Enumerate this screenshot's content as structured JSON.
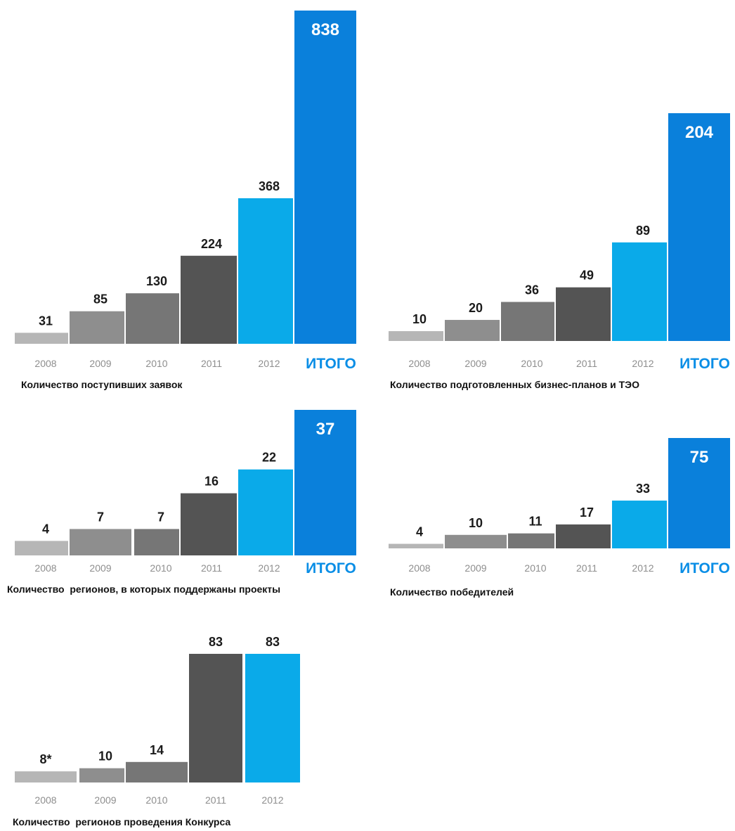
{
  "chart_data": [
    {
      "type": "bar",
      "title": "Количество поступивших заявок",
      "categories": [
        "2008",
        "2009",
        "2010",
        "2011",
        "2012",
        "ИТОГО"
      ],
      "values": [
        31,
        85,
        130,
        224,
        368,
        838
      ],
      "value_labels": [
        "31",
        "85",
        "130",
        "224",
        "368",
        "838"
      ],
      "ylim": [
        0,
        838
      ],
      "grid": false,
      "colors": [
        "#b6b6b6",
        "#8e8e8e",
        "#767676",
        "#545454",
        "#0aaae9",
        "#0a80db"
      ]
    },
    {
      "type": "bar",
      "title": "Количество подготовленных бизнес-планов и ТЭО",
      "categories": [
        "2008",
        "2009",
        "2010",
        "2011",
        "2012",
        "ИТОГО"
      ],
      "values": [
        10,
        20,
        36,
        49,
        89,
        204
      ],
      "value_labels": [
        "10",
        "20",
        "36",
        "49",
        "89",
        "204"
      ],
      "ylim": [
        0,
        204
      ],
      "grid": false,
      "colors": [
        "#b6b6b6",
        "#8e8e8e",
        "#767676",
        "#545454",
        "#0aaae9",
        "#0a80db"
      ]
    },
    {
      "type": "bar",
      "title": "Количество  регионов, в которых поддержаны проекты",
      "categories": [
        "2008",
        "2009",
        "2010",
        "2011",
        "2012",
        "ИТОГО"
      ],
      "values": [
        4,
        7,
        7,
        16,
        22,
        37
      ],
      "value_labels": [
        "4",
        "7",
        "7",
        "16",
        "22",
        "37"
      ],
      "ylim": [
        0,
        37
      ],
      "grid": false,
      "colors": [
        "#b6b6b6",
        "#8e8e8e",
        "#767676",
        "#545454",
        "#0aaae9",
        "#0a80db"
      ]
    },
    {
      "type": "bar",
      "title": "Количество победителей",
      "categories": [
        "2008",
        "2009",
        "2010",
        "2011",
        "2012",
        "ИТОГО"
      ],
      "values": [
        4,
        10,
        11,
        17,
        33,
        75
      ],
      "value_labels": [
        "4",
        "10",
        "11",
        "17",
        "33",
        "75"
      ],
      "ylim": [
        0,
        75
      ],
      "grid": false,
      "colors": [
        "#b6b6b6",
        "#8e8e8e",
        "#767676",
        "#545454",
        "#0aaae9",
        "#0a80db"
      ]
    },
    {
      "type": "bar",
      "title": "Количество  регионов проведения Конкурса",
      "categories": [
        "2008",
        "2009",
        "2010",
        "2011",
        "2012"
      ],
      "values": [
        8,
        10,
        14,
        83,
        83
      ],
      "value_labels": [
        "8*",
        "10",
        "14",
        "83",
        "83"
      ],
      "ylim": [
        0,
        83
      ],
      "grid": false,
      "colors": [
        "#b6b6b6",
        "#8e8e8e",
        "#767676",
        "#545454",
        "#0aaae9"
      ]
    }
  ]
}
